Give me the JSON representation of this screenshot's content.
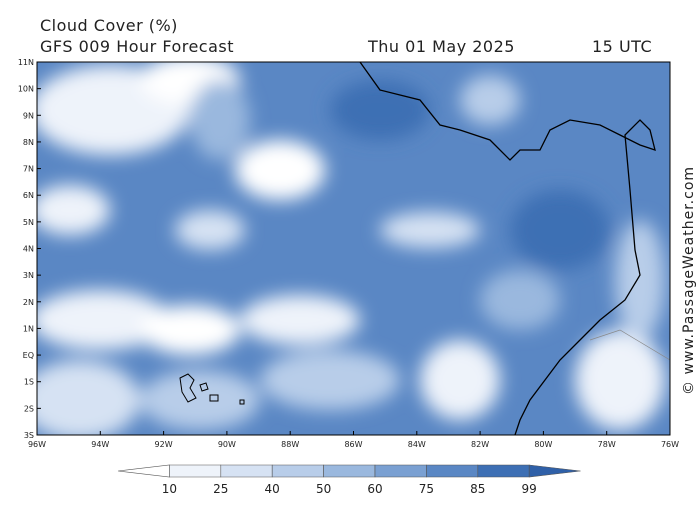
{
  "header": {
    "title": "Cloud Cover (%)",
    "subtitle": "GFS 009 Hour Forecast",
    "date": "Thu 01 May 2025",
    "time": "15 UTC"
  },
  "map": {
    "lat_labels": [
      "11N",
      "10N",
      "9N",
      "8N",
      "7N",
      "6N",
      "5N",
      "4N",
      "3N",
      "2N",
      "1N",
      "EQ",
      "1S",
      "2S",
      "3S"
    ],
    "lon_labels": [
      "96W",
      "94W",
      "92W",
      "90W",
      "88W",
      "86W",
      "84W",
      "82W",
      "80W",
      "78W",
      "76W"
    ]
  },
  "colorbar": {
    "levels": [
      "10",
      "25",
      "40",
      "50",
      "60",
      "75",
      "85",
      "99"
    ],
    "colors": [
      "#ffffff",
      "#eef3fa",
      "#d6e2f3",
      "#b8cde9",
      "#9ab8de",
      "#7aa0d2",
      "#5a87c4",
      "#3d6fb4",
      "#2f60a8"
    ]
  },
  "watermark": "© www.PassageWeather.com"
}
